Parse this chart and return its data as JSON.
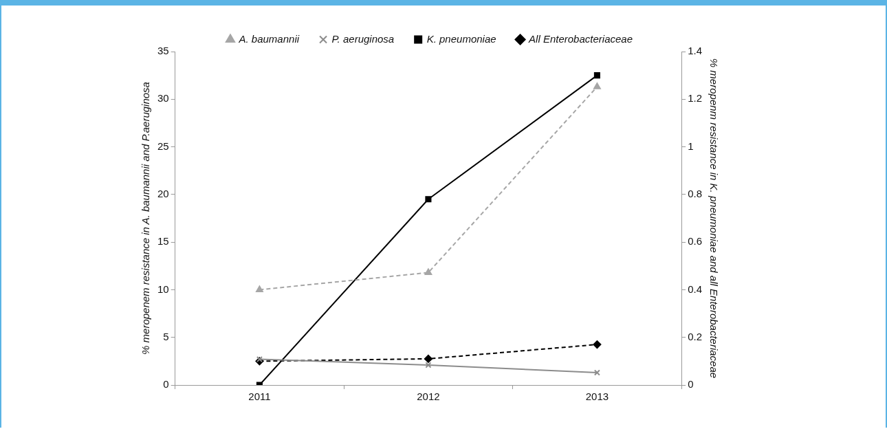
{
  "chart_data": {
    "type": "line",
    "categories": [
      "2011",
      "2012",
      "2013"
    ],
    "series": [
      {
        "name": "A. baumannii",
        "color": "#a6a6a6",
        "values": [
          10,
          11.8,
          31.3
        ],
        "marker": "triangle",
        "line_style": "dashed"
      },
      {
        "name": "P. aeruginosa",
        "color": "#8c8c8c",
        "values": [
          2.7,
          2.1,
          1.3
        ],
        "marker": "cross",
        "line_style": "solid"
      },
      {
        "name": "K. pneumoniae",
        "color": "#000000",
        "values": [
          0,
          0.78,
          1.3
        ],
        "marker": "square",
        "line_style": "solid",
        "axis": "y2"
      },
      {
        "name": "All Enterobacteriaceae",
        "color": "#000000",
        "values": [
          0.1,
          0.11,
          0.17
        ],
        "marker": "diamond",
        "line_style": "dashed",
        "axis": "y2"
      }
    ],
    "ylabel": "% meropenem resistance in A. baumannii and P.aeruginosa",
    "y2label": "% meropenm resistance in K. pneumoniae and all Enterobacteriaceae",
    "ylim": [
      0,
      35
    ],
    "yticks": [
      0,
      5,
      10,
      15,
      20,
      25,
      30,
      35
    ],
    "y2lim": [
      0,
      1.4
    ],
    "y2ticks": [
      0,
      0.2,
      0.4,
      0.6,
      0.8,
      1,
      1.2,
      1.4
    ],
    "grid": false,
    "legend": "top"
  }
}
